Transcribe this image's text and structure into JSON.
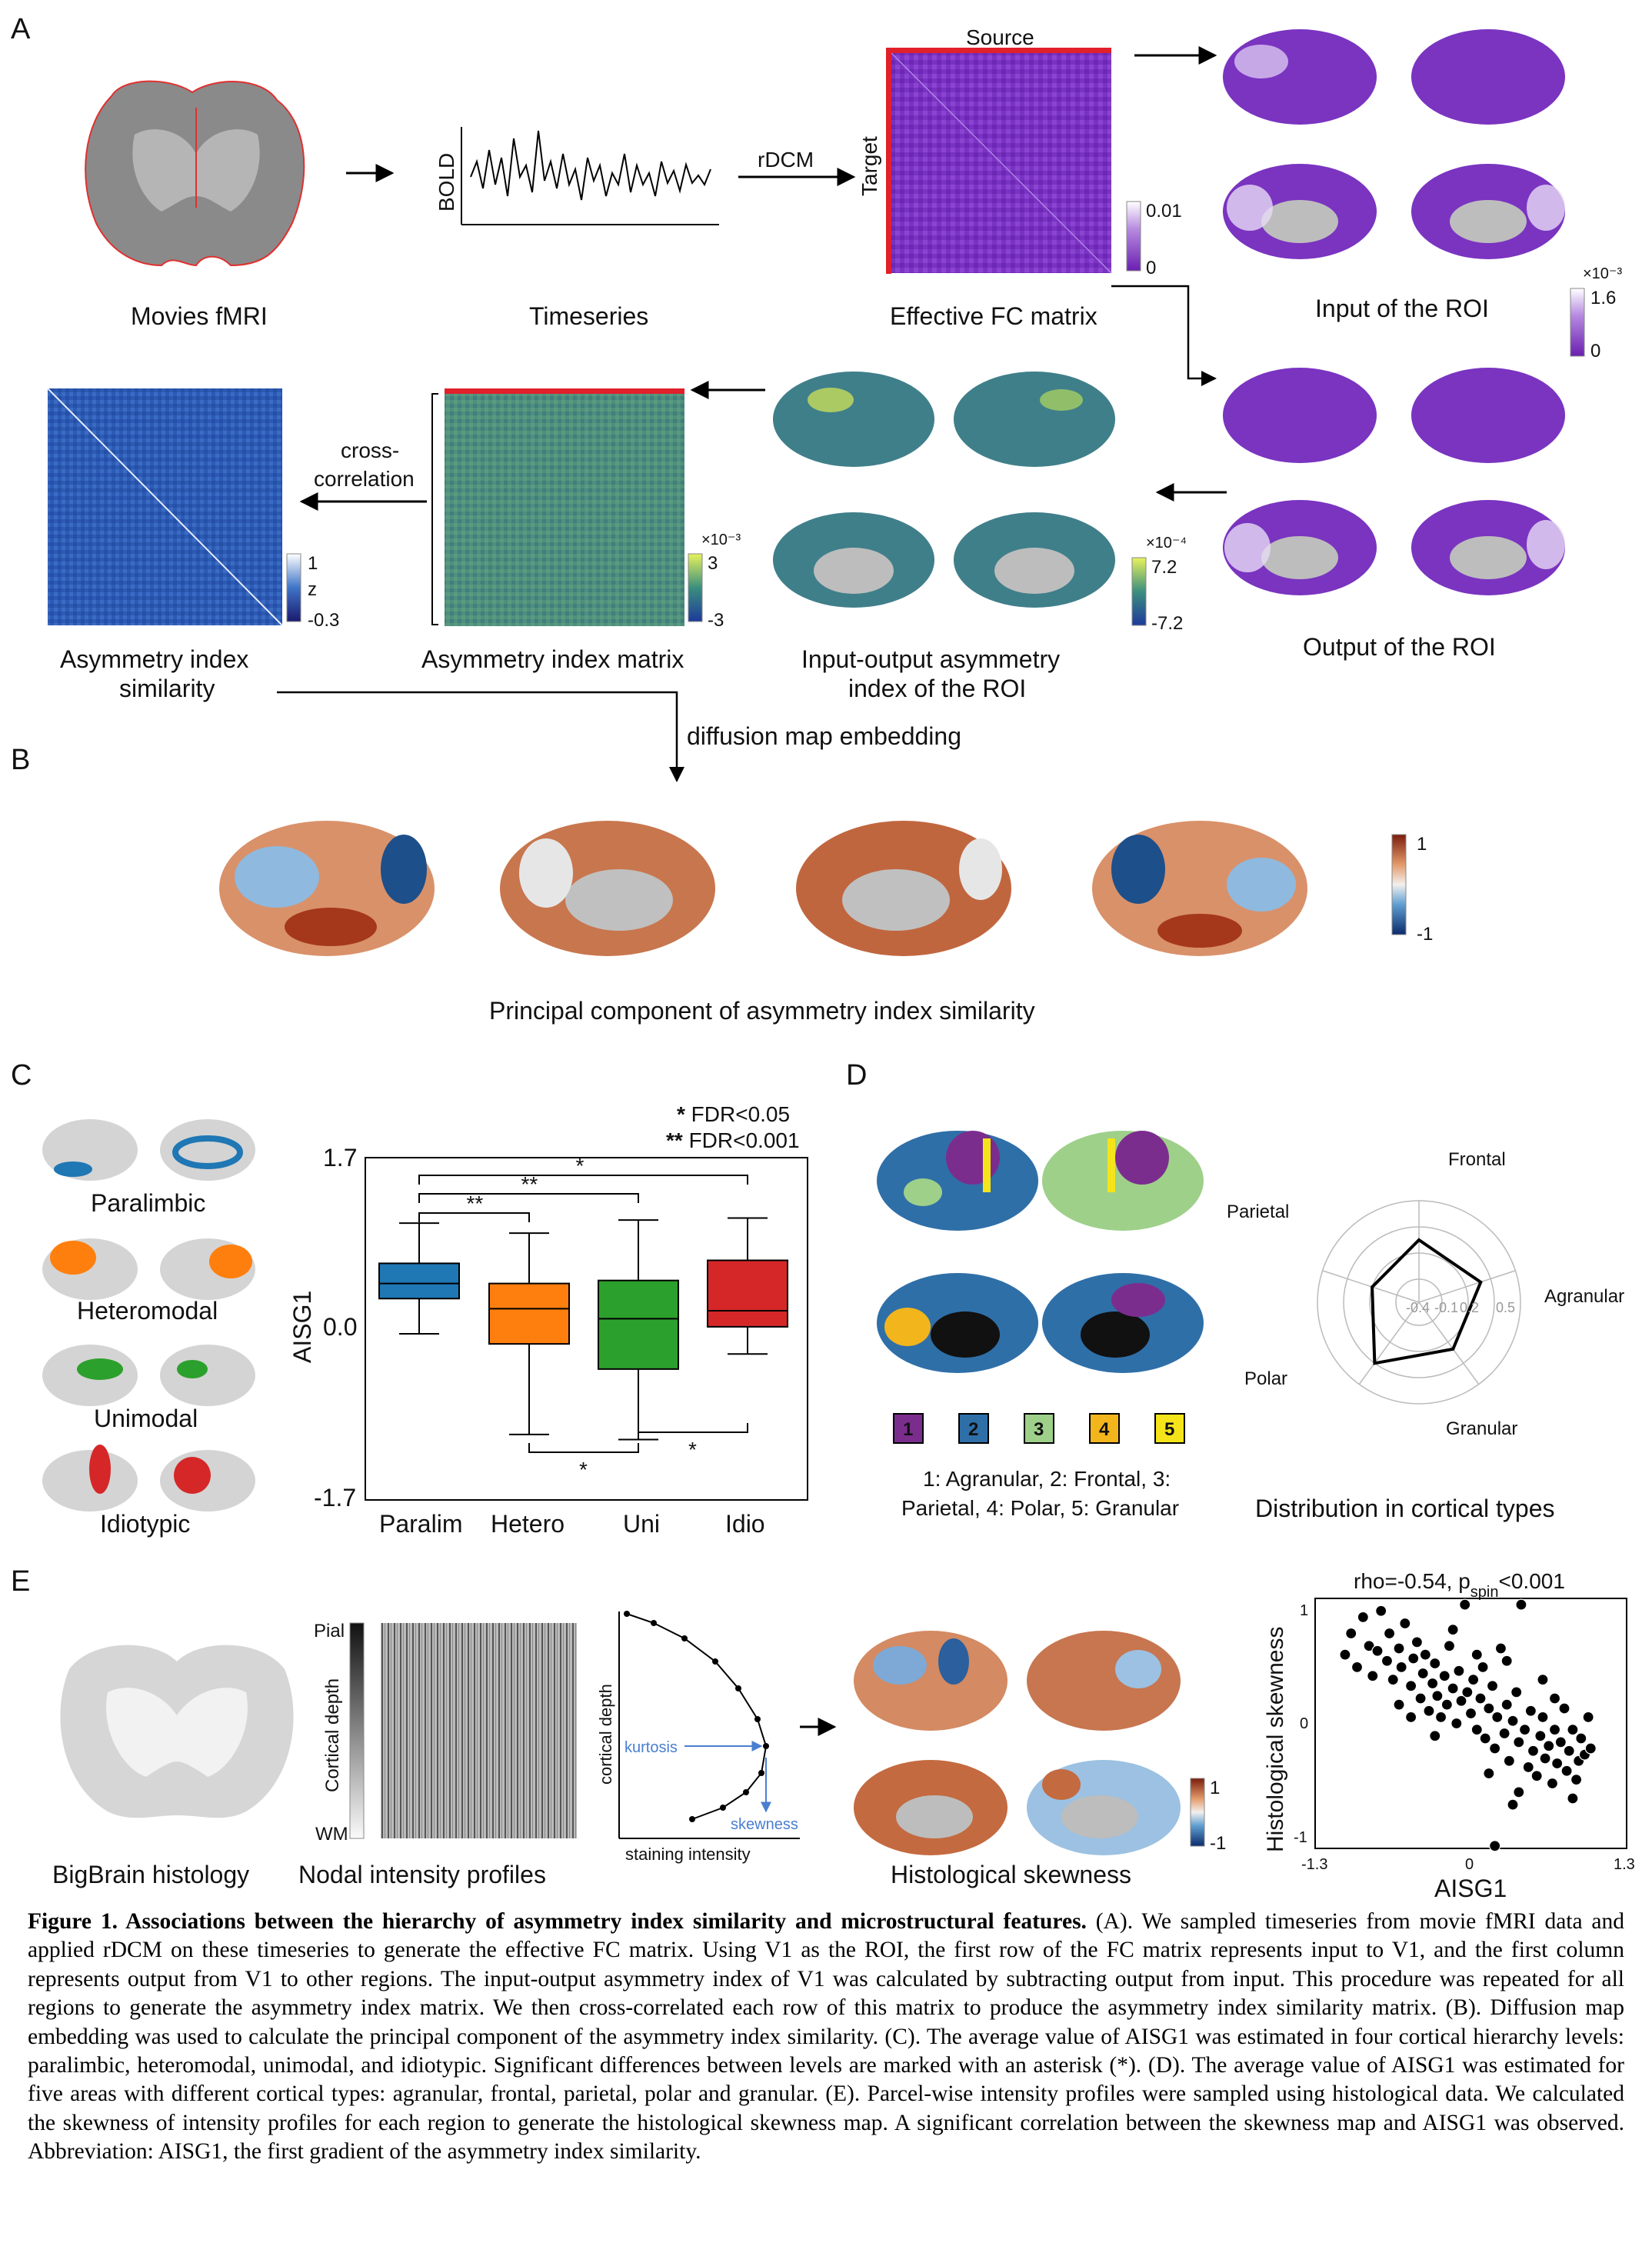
{
  "panel_letters": {
    "a": "A",
    "b": "B",
    "c": "C",
    "d": "D",
    "e": "E"
  },
  "panel_a": {
    "movies_label": "Movies fMRI",
    "timeseries_label": "Timeseries",
    "bold_label": "BOLD",
    "rdcm_label": "rDCM",
    "source_label": "Source",
    "target_label": "Target",
    "fc_label": "Effective FC matrix",
    "fc_cbar_max": "0.01",
    "fc_cbar_min": "0",
    "input_label": "Input of the ROI",
    "input_cbar_exp": "×10⁻³",
    "input_cbar_max": "1.6",
    "input_cbar_min": "0",
    "output_label": "Output of the ROI",
    "asym_idx_label_1": "Input-output asymmetry",
    "asym_idx_label_2": "index of the ROI",
    "asym_idx_cbar_exp": "×10⁻⁴",
    "asym_idx_cbar_max": "7.2",
    "asym_idx_cbar_min": "-7.2",
    "asym_matrix_label": "Asymmetry index matrix",
    "asym_matrix_cbar_exp": "×10⁻³",
    "asym_matrix_cbar_max": "3",
    "asym_matrix_cbar_min": "-3",
    "crosscorr_label_1": "cross-",
    "crosscorr_label_2": "correlation",
    "similarity_label_1": "Asymmetry index",
    "similarity_label_2": "similarity",
    "sim_cbar_max": "1",
    "sim_cbar_mid": "z",
    "sim_cbar_min": "-0.3",
    "diffusion_label": "diffusion map embedding"
  },
  "panel_b": {
    "title": "Principal component of asymmetry index similarity",
    "cbar_max": "1",
    "cbar_min": "-1"
  },
  "panel_c": {
    "legend_line1_stars": "*",
    "legend_line1_text": " FDR<0.05",
    "legend_line2_stars": "**",
    "legend_line2_text": " FDR<0.001",
    "brain_labels": [
      "Paralimbic",
      "Heteromodal",
      "Unimodal",
      "Idiotypic"
    ],
    "brain_colors": [
      "#1f77b4",
      "#ff7f0e",
      "#2ca02c",
      "#d62728"
    ],
    "sig_marks": [
      "*",
      "**",
      "**",
      "*",
      "*"
    ]
  },
  "panel_d": {
    "type_numbers": [
      "1",
      "2",
      "3",
      "4",
      "5"
    ],
    "type_colors": [
      "#7b2d8e",
      "#2f6fa8",
      "#9ed08a",
      "#f2b51c",
      "#f5e41a"
    ],
    "legend_line1": "1: Agranular, 2: Frontal, 3:",
    "legend_line2": "Parietal, 4: Polar, 5: Granular",
    "radar_axes": [
      "Frontal",
      "Agranular",
      "Granular",
      "Polar",
      "Parietal"
    ],
    "radar_ticks": [
      "-0.4",
      "-0.1",
      "0.2",
      "0.5"
    ],
    "radar_values": {
      "Frontal": 0.05,
      "Agranular": 0.08,
      "Granular": 0.0,
      "Polar": 0.2,
      "Parietal": -0.1
    },
    "distribution_label": "Distribution in cortical types"
  },
  "panel_e": {
    "bigbrain_label": "BigBrain histology",
    "pial_label": "Pial",
    "wm_label": "WM",
    "cortical_depth_label": "Cortical depth",
    "nodal_label": "Nodal intensity profiles",
    "profile_ylabel": "cortical depth",
    "profile_xlabel": "staining intensity",
    "kurtosis_label": "kurtosis",
    "skewness_label": "skewness",
    "hist_skew_label": "Histological skewness",
    "hist_cbar_max": "1",
    "hist_cbar_min": "-1",
    "scatter_title_pre": "rho=-0.54, p",
    "scatter_title_sub": "spin",
    "scatter_title_post": "<0.001"
  },
  "colors": {
    "purple": "#7b2fbf",
    "red_line": "#e0202a",
    "teal": "#3b7f8f",
    "diverging_pos": "#b4441c",
    "diverging_neg": "#1d4f8a"
  },
  "caption": {
    "bold": "Figure 1. Associations between the hierarchy of asymmetry index similarity and microstructural features.",
    "text": " (A). We sampled timeseries from movie fMRI data and applied rDCM on these timeseries to generate the effective FC matrix. Using V1 as the ROI, the first row of the FC matrix represents input to V1, and the first column represents output from V1 to other regions. The input-output asymmetry index of V1 was calculated by subtracting output from input. This procedure was repeated for all regions to generate the asymmetry index matrix. We then cross-correlated each row of this matrix to produce the asymmetry index similarity matrix. (B). Diffusion map embedding was used to calculate the principal component of the asymmetry index similarity.  (C). The average value of AISG1 was estimated in four cortical hierarchy levels: paralimbic, heteromodal, unimodal, and idiotypic. Significant differences between levels are marked with an asterisk (*). (D). The average value of AISG1 was estimated for five areas with different cortical types: agranular, frontal, parietal, polar and granular. (E). Parcel-wise intensity profiles were sampled using histological data. We calculated the skewness of intensity profiles for each region to generate the histological skewness map. A significant correlation between the skewness map and AISG1 was observed. Abbreviation: AISG1, the first gradient of the asymmetry index similarity."
  },
  "chart_data": [
    {
      "type": "box",
      "panel": "C",
      "categories": [
        "Paralim",
        "Hetero",
        "Uni",
        "Idio"
      ],
      "ylabel": "AISG1",
      "yticks": [
        "1.7",
        "0.0",
        "-1.7"
      ],
      "ylim": [
        -1.7,
        1.7
      ],
      "boxes": [
        {
          "name": "Paralim",
          "whisker_low": -0.05,
          "q1": 0.3,
          "median": 0.45,
          "q3": 0.65,
          "whisker_high": 1.05
        },
        {
          "name": "Hetero",
          "whisker_low": -1.05,
          "q1": -0.15,
          "median": 0.2,
          "q3": 0.45,
          "whisker_high": 0.95
        },
        {
          "name": "Uni",
          "whisker_low": -1.1,
          "q1": -0.4,
          "median": 0.1,
          "q3": 0.48,
          "whisker_high": 1.08
        },
        {
          "name": "Idio",
          "whisker_low": -0.25,
          "q1": 0.02,
          "median": 0.18,
          "q3": 0.68,
          "whisker_high": 1.1
        }
      ],
      "significance": [
        {
          "pair": [
            "Paralim",
            "Idio"
          ],
          "label": "*"
        },
        {
          "pair": [
            "Paralim",
            "Uni"
          ],
          "label": "**"
        },
        {
          "pair": [
            "Paralim",
            "Hetero"
          ],
          "label": "**"
        },
        {
          "pair": [
            "Hetero",
            "Uni"
          ],
          "label": "*"
        },
        {
          "pair": [
            "Uni",
            "Idio"
          ],
          "label": "*"
        }
      ]
    },
    {
      "type": "scatter",
      "panel": "E",
      "xlabel": "AISG1",
      "ylabel": "Histological skewness",
      "xlim": [
        -1.3,
        1.3
      ],
      "ylim": [
        -1,
        1
      ],
      "xticks": [
        "-1.3",
        "0",
        "1.3"
      ],
      "yticks": [
        "1",
        "0",
        "-1"
      ],
      "points": [
        [
          -1.05,
          0.55
        ],
        [
          -1.0,
          0.72
        ],
        [
          -0.95,
          0.45
        ],
        [
          -0.9,
          0.85
        ],
        [
          -0.85,
          0.62
        ],
        [
          -0.82,
          0.38
        ],
        [
          -0.78,
          0.58
        ],
        [
          -0.75,
          0.9
        ],
        [
          -0.7,
          0.5
        ],
        [
          -0.68,
          0.72
        ],
        [
          -0.65,
          0.35
        ],
        [
          -0.6,
          0.6
        ],
        [
          -0.58,
          0.45
        ],
        [
          -0.55,
          0.8
        ],
        [
          -0.5,
          0.3
        ],
        [
          -0.48,
          0.52
        ],
        [
          -0.45,
          0.65
        ],
        [
          -0.42,
          0.2
        ],
        [
          -0.4,
          0.4
        ],
        [
          -0.38,
          0.55
        ],
        [
          -0.35,
          0.1
        ],
        [
          -0.32,
          0.32
        ],
        [
          -0.3,
          0.48
        ],
        [
          -0.28,
          0.22
        ],
        [
          -0.25,
          0.05
        ],
        [
          -0.22,
          0.38
        ],
        [
          -0.2,
          0.15
        ],
        [
          -0.18,
          0.62
        ],
        [
          -0.15,
          0.28
        ],
        [
          -0.12,
          0.0
        ],
        [
          -0.1,
          0.42
        ],
        [
          -0.08,
          0.18
        ],
        [
          -0.05,
          0.95
        ],
        [
          -0.03,
          0.25
        ],
        [
          0.0,
          0.08
        ],
        [
          0.02,
          0.35
        ],
        [
          0.05,
          -0.05
        ],
        [
          0.08,
          0.2
        ],
        [
          0.1,
          0.45
        ],
        [
          0.12,
          -0.12
        ],
        [
          0.15,
          0.12
        ],
        [
          0.18,
          0.3
        ],
        [
          0.2,
          -0.2
        ],
        [
          0.22,
          0.05
        ],
        [
          0.25,
          0.6
        ],
        [
          0.28,
          -0.08
        ],
        [
          0.3,
          0.15
        ],
        [
          0.32,
          -0.3
        ],
        [
          0.35,
          0.02
        ],
        [
          0.38,
          0.25
        ],
        [
          0.4,
          -0.15
        ],
        [
          0.42,
          0.95
        ],
        [
          0.45,
          -0.05
        ],
        [
          0.48,
          -0.35
        ],
        [
          0.5,
          0.1
        ],
        [
          0.52,
          -0.22
        ],
        [
          0.55,
          -0.42
        ],
        [
          0.58,
          -0.1
        ],
        [
          0.6,
          0.05
        ],
        [
          0.62,
          -0.28
        ],
        [
          0.65,
          -0.18
        ],
        [
          0.68,
          -0.48
        ],
        [
          0.7,
          -0.05
        ],
        [
          0.72,
          -0.32
        ],
        [
          0.75,
          -0.15
        ],
        [
          0.78,
          0.12
        ],
        [
          0.8,
          -0.38
        ],
        [
          0.82,
          -0.22
        ],
        [
          0.85,
          -0.05
        ],
        [
          0.88,
          -0.45
        ],
        [
          0.9,
          -0.3
        ],
        [
          0.92,
          -0.12
        ],
        [
          0.95,
          -0.25
        ],
        [
          0.98,
          0.05
        ],
        [
          1.0,
          -0.2
        ],
        [
          -0.6,
          0.15
        ],
        [
          -0.3,
          -0.1
        ],
        [
          0.05,
          0.55
        ],
        [
          0.3,
          0.5
        ],
        [
          -0.15,
          0.75
        ],
        [
          0.6,
          0.35
        ],
        [
          0.4,
          -0.55
        ],
        [
          0.2,
          -0.98
        ],
        [
          0.7,
          0.2
        ],
        [
          -0.5,
          0.05
        ],
        [
          0.15,
          -0.4
        ],
        [
          0.85,
          -0.6
        ],
        [
          0.35,
          -0.65
        ]
      ]
    }
  ]
}
